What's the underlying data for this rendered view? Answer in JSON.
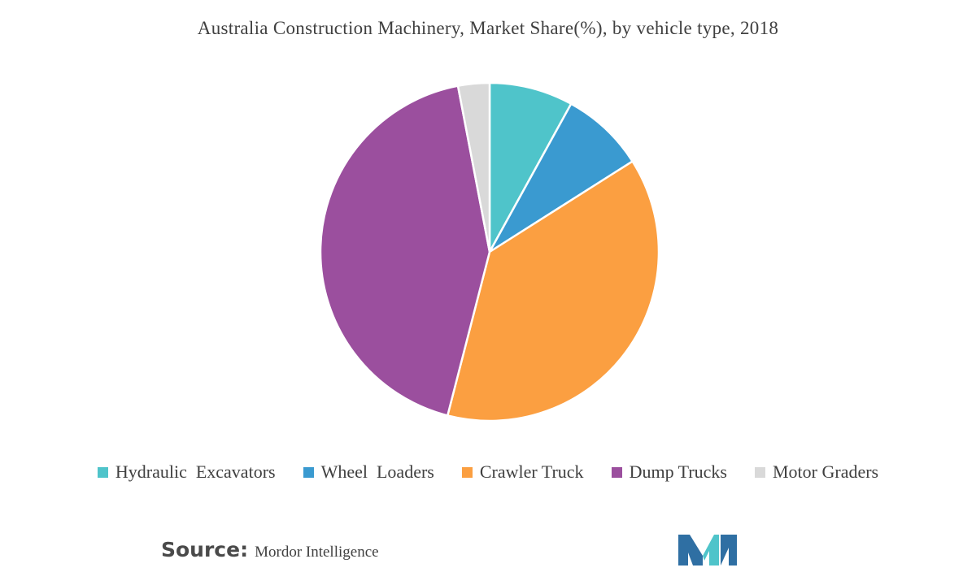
{
  "chart_data": {
    "type": "pie",
    "title": "Australia Construction Machinery, Market Share(%), by vehicle type, 2018",
    "categories": [
      "Hydraulic  Excavators",
      "Wheel  Loaders",
      "Crawler Truck",
      "Dump Trucks",
      "Motor Graders"
    ],
    "values": [
      8,
      8,
      38,
      43,
      3
    ],
    "colors": [
      "#4fc4ca",
      "#3a9ad0",
      "#fb9f41",
      "#9b4f9e",
      "#d9d9d9"
    ],
    "legend_position": "bottom",
    "start_angle": "top",
    "direction": "clockwise"
  },
  "source": {
    "label": "Source:",
    "value": "Mordor Intelligence"
  },
  "logo": {
    "icon": "mordor-intelligence-logo-icon",
    "colors": [
      "#2f6fa3",
      "#4fc4ca"
    ]
  }
}
